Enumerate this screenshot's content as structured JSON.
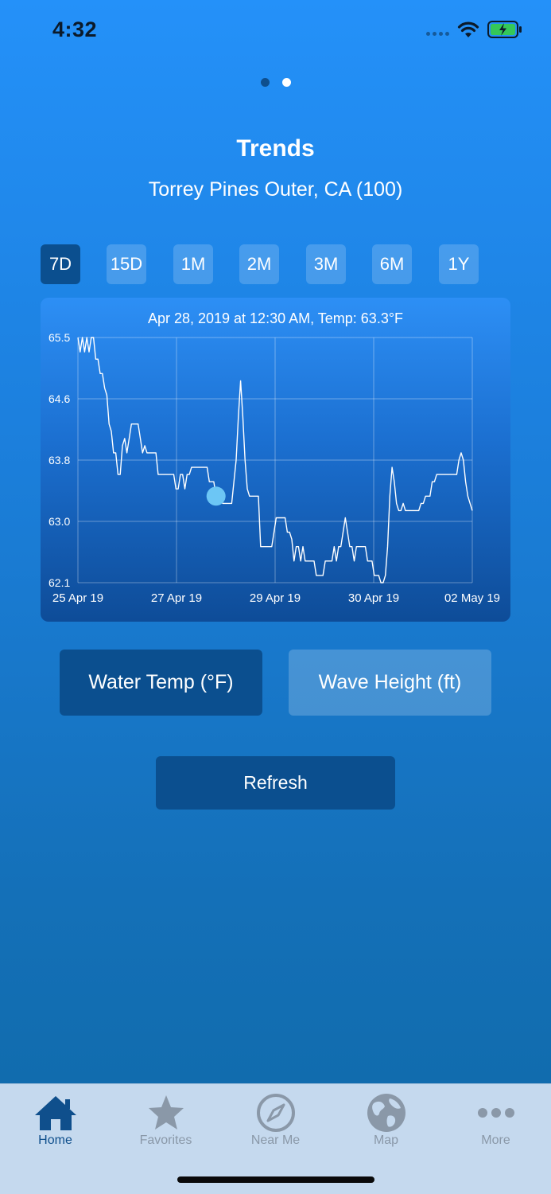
{
  "status_bar": {
    "time": "4:32"
  },
  "pager": {
    "pages": 2,
    "active_index": 1
  },
  "header": {
    "title": "Trends",
    "subtitle": "Torrey Pines Outer, CA (100)"
  },
  "ranges": [
    "7D",
    "15D",
    "1M",
    "2M",
    "3M",
    "6M",
    "1Y"
  ],
  "selected_range": "7D",
  "chart": {
    "info": "Apr 28, 2019 at 12:30 AM, Temp: 63.3°F"
  },
  "chart_data": {
    "type": "line",
    "title": "",
    "xlabel": "",
    "ylabel": "",
    "ylim": [
      62.1,
      65.5
    ],
    "y_ticks": [
      "65.5",
      "64.6",
      "63.8",
      "63.0",
      "62.1"
    ],
    "x_ticks": [
      "25 Apr 19",
      "27 Apr 19",
      "29 Apr 19",
      "30 Apr 19",
      "02 May 19"
    ],
    "grid": true,
    "series": [
      {
        "values": [
          65.5,
          65.3,
          65.5,
          65.3,
          65.5,
          65.3,
          65.5,
          65.5,
          65.2,
          65.2,
          65.0,
          65.0,
          64.8,
          64.7,
          64.3,
          64.2,
          63.9,
          63.9,
          63.6,
          63.6,
          64.0,
          64.1,
          63.9,
          64.1,
          64.3,
          64.3,
          64.3,
          64.3,
          64.1,
          63.9,
          64.0,
          63.9,
          63.9,
          63.9,
          63.9,
          63.9,
          63.6,
          63.6,
          63.6,
          63.6,
          63.6,
          63.6,
          63.6,
          63.6,
          63.4,
          63.4,
          63.6,
          63.6,
          63.4,
          63.6,
          63.6,
          63.7,
          63.7,
          63.7,
          63.7,
          63.7,
          63.7,
          63.7,
          63.7,
          63.5,
          63.5,
          63.5,
          63.3,
          63.3,
          63.3,
          63.2,
          63.2,
          63.2,
          63.2,
          63.2,
          63.5,
          63.8,
          64.4,
          64.9,
          64.4,
          63.8,
          63.4,
          63.3,
          63.3,
          63.3,
          63.3,
          63.3,
          62.6,
          62.6,
          62.6,
          62.6,
          62.6,
          62.6,
          62.8,
          63.0,
          63.0,
          63.0,
          63.0,
          63.0,
          62.8,
          62.8,
          62.7,
          62.4,
          62.6,
          62.6,
          62.4,
          62.6,
          62.4,
          62.4,
          62.4,
          62.4,
          62.4,
          62.2,
          62.2,
          62.2,
          62.2,
          62.4,
          62.4,
          62.4,
          62.4,
          62.6,
          62.4,
          62.6,
          62.6,
          62.8,
          63.0,
          62.8,
          62.6,
          62.6,
          62.4,
          62.6,
          62.6,
          62.6,
          62.6,
          62.6,
          62.4,
          62.4,
          62.4,
          62.2,
          62.2,
          62.2,
          62.1,
          62.1,
          62.2,
          62.6,
          63.3,
          63.7,
          63.5,
          63.2,
          63.1,
          63.1,
          63.2,
          63.1,
          63.1,
          63.1,
          63.1,
          63.1,
          63.1,
          63.1,
          63.2,
          63.2,
          63.3,
          63.3,
          63.3,
          63.5,
          63.5,
          63.6,
          63.6,
          63.6,
          63.6,
          63.6,
          63.6,
          63.6,
          63.6,
          63.6,
          63.6,
          63.8,
          63.9,
          63.8,
          63.5,
          63.3,
          63.2,
          63.1
        ]
      }
    ],
    "highlight": {
      "label": "Apr 28, 2019 at 12:30 AM",
      "value": 63.3
    }
  },
  "metrics": {
    "active": "Water Temp (°F)",
    "inactive": "Wave Height (ft)"
  },
  "actions": {
    "refresh": "Refresh"
  },
  "tabs": [
    {
      "label": "Home",
      "icon": "home-icon",
      "active": true
    },
    {
      "label": "Favorites",
      "icon": "star-icon",
      "active": false
    },
    {
      "label": "Near Me",
      "icon": "compass-icon",
      "active": false
    },
    {
      "label": "Map",
      "icon": "globe-icon",
      "active": false
    },
    {
      "label": "More",
      "icon": "more-icon",
      "active": false
    }
  ],
  "colors": {
    "accent_dark": "#0b4f8f",
    "tab_active": "#0f4f8c",
    "tab_inactive": "#8a98a8",
    "highlight_point": "#6cc6f5"
  }
}
